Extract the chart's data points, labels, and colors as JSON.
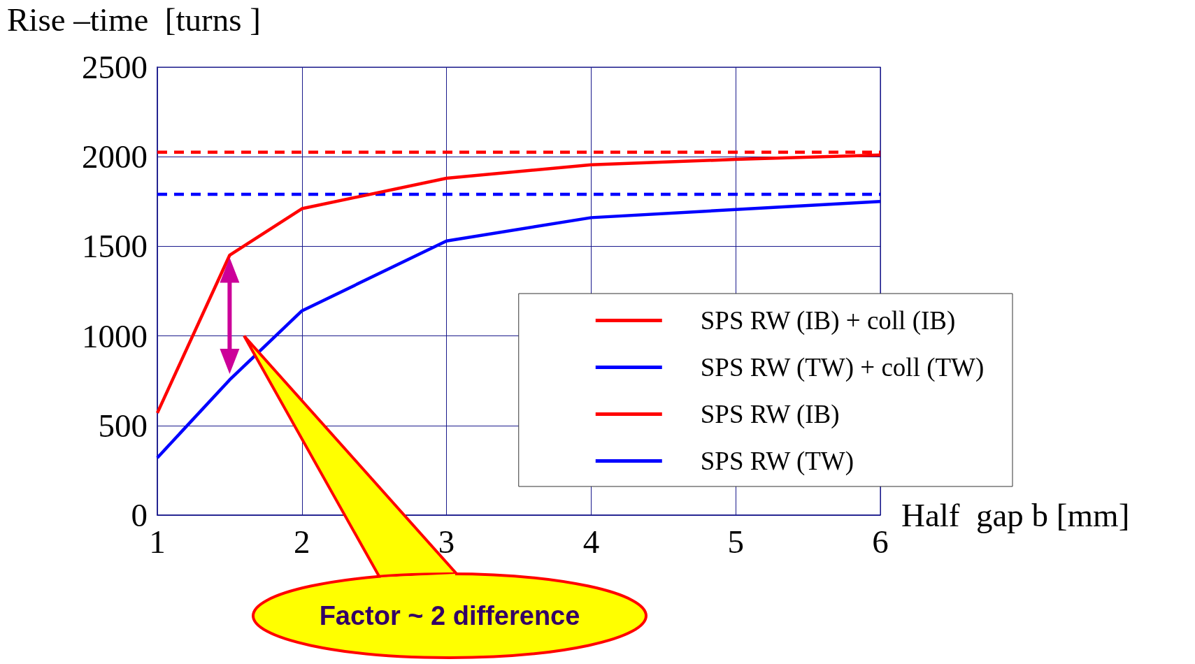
{
  "chart_data": {
    "type": "line",
    "xlabel": "Half  gap b [mm]",
    "ylabel": "Rise –time  [turns ]",
    "x": [
      1,
      1.5,
      2,
      3,
      4,
      5,
      6
    ],
    "series": [
      {
        "name": "SPS RW (IB) + coll (IB)",
        "color": "#ff0000",
        "values": [
          570,
          1450,
          1710,
          1880,
          1955,
          1985,
          2010
        ]
      },
      {
        "name": "SPS RW (TW) + coll (TW)",
        "color": "#0000ff",
        "values": [
          320,
          755,
          1140,
          1530,
          1660,
          1705,
          1750
        ]
      },
      {
        "name": "SPS RW (IB)",
        "color": "#ff0000",
        "line_style": "dashed",
        "values": [
          2025,
          2025,
          2025,
          2025,
          2025,
          2025,
          2025
        ]
      },
      {
        "name": "SPS RW (TW)",
        "color": "#0000ff",
        "line_style": "dashed",
        "values": [
          1790,
          1790,
          1790,
          1790,
          1790,
          1790,
          1790
        ]
      }
    ],
    "xlim": [
      1,
      6
    ],
    "xticks": [
      1,
      2,
      3,
      4,
      5,
      6
    ],
    "ylim": [
      0,
      2500
    ],
    "yticks": [
      0,
      500,
      1000,
      1500,
      2000,
      2500
    ],
    "grid": true,
    "legend": "bottom right",
    "marker": "none",
    "line_style": "solid",
    "annotations": [
      "Factor ~ 2 difference"
    ]
  }
}
